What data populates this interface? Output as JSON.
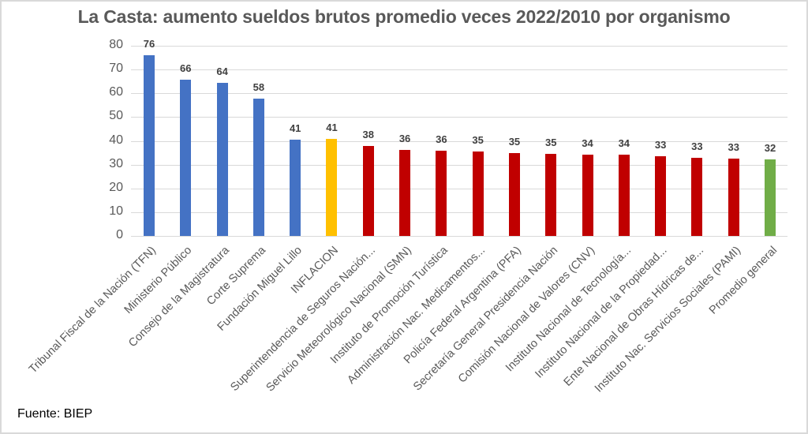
{
  "title": "La Casta: aumento sueldos brutos promedio veces 2022/2010 por organismo",
  "source": "Fuente: BIEP",
  "colors": {
    "blue": "#4472c4",
    "yellow": "#ffc000",
    "red": "#c00000",
    "green": "#70ad47",
    "grid": "#d9d9d9",
    "text": "#595959"
  },
  "y_ticks": [
    "0",
    "10",
    "20",
    "30",
    "40",
    "50",
    "60",
    "70",
    "80"
  ],
  "chart_data": {
    "type": "bar",
    "title": "La Casta: aumento sueldos brutos promedio veces 2022/2010 por organismo",
    "xlabel": "",
    "ylabel": "",
    "ylim": [
      0,
      80
    ],
    "yticks": [
      0,
      10,
      20,
      30,
      40,
      50,
      60,
      70,
      80
    ],
    "grid": true,
    "legend": null,
    "annotation": "Fuente: BIEP",
    "categories": [
      "Tribunal Fiscal de la Nación (TFN)",
      "Ministerio Público",
      "Consejo de la Magistratura",
      "Corte Suprema",
      "Fundación Miguel Lillo",
      "INFLACION",
      "Superintendencia de Seguros Nación...",
      "Servicio Meteorológico Nacional (SMN)",
      "Instituto de Promoción Turística",
      "Administración Nac. Medicamentos...",
      "Policía Federal Argentina (PFA)",
      "Secretaría General Presidencia Nación",
      "Comisión Nacional de Valores (CNV)",
      "Instituto Nacional de Tecnología...",
      "Instituto Nacional de la Propiedad...",
      "Ente Nacional de Obras Hídricas de...",
      "Instituto Nac. Servicios Sociales (PAMI)",
      "Promedio general"
    ],
    "values": [
      76,
      66,
      64,
      58,
      41,
      41,
      38,
      36,
      36,
      35,
      35,
      35,
      34,
      34,
      33,
      33,
      33,
      32
    ],
    "bar_values_precise": [
      76.0,
      65.8,
      64.3,
      57.7,
      40.6,
      40.9,
      37.7,
      36.3,
      36.0,
      35.5,
      34.7,
      34.6,
      34.3,
      34.3,
      33.4,
      32.9,
      32.6,
      32.3
    ],
    "bar_colors": [
      "blue",
      "blue",
      "blue",
      "blue",
      "blue",
      "yellow",
      "red",
      "red",
      "red",
      "red",
      "red",
      "red",
      "red",
      "red",
      "red",
      "red",
      "red",
      "green"
    ]
  }
}
